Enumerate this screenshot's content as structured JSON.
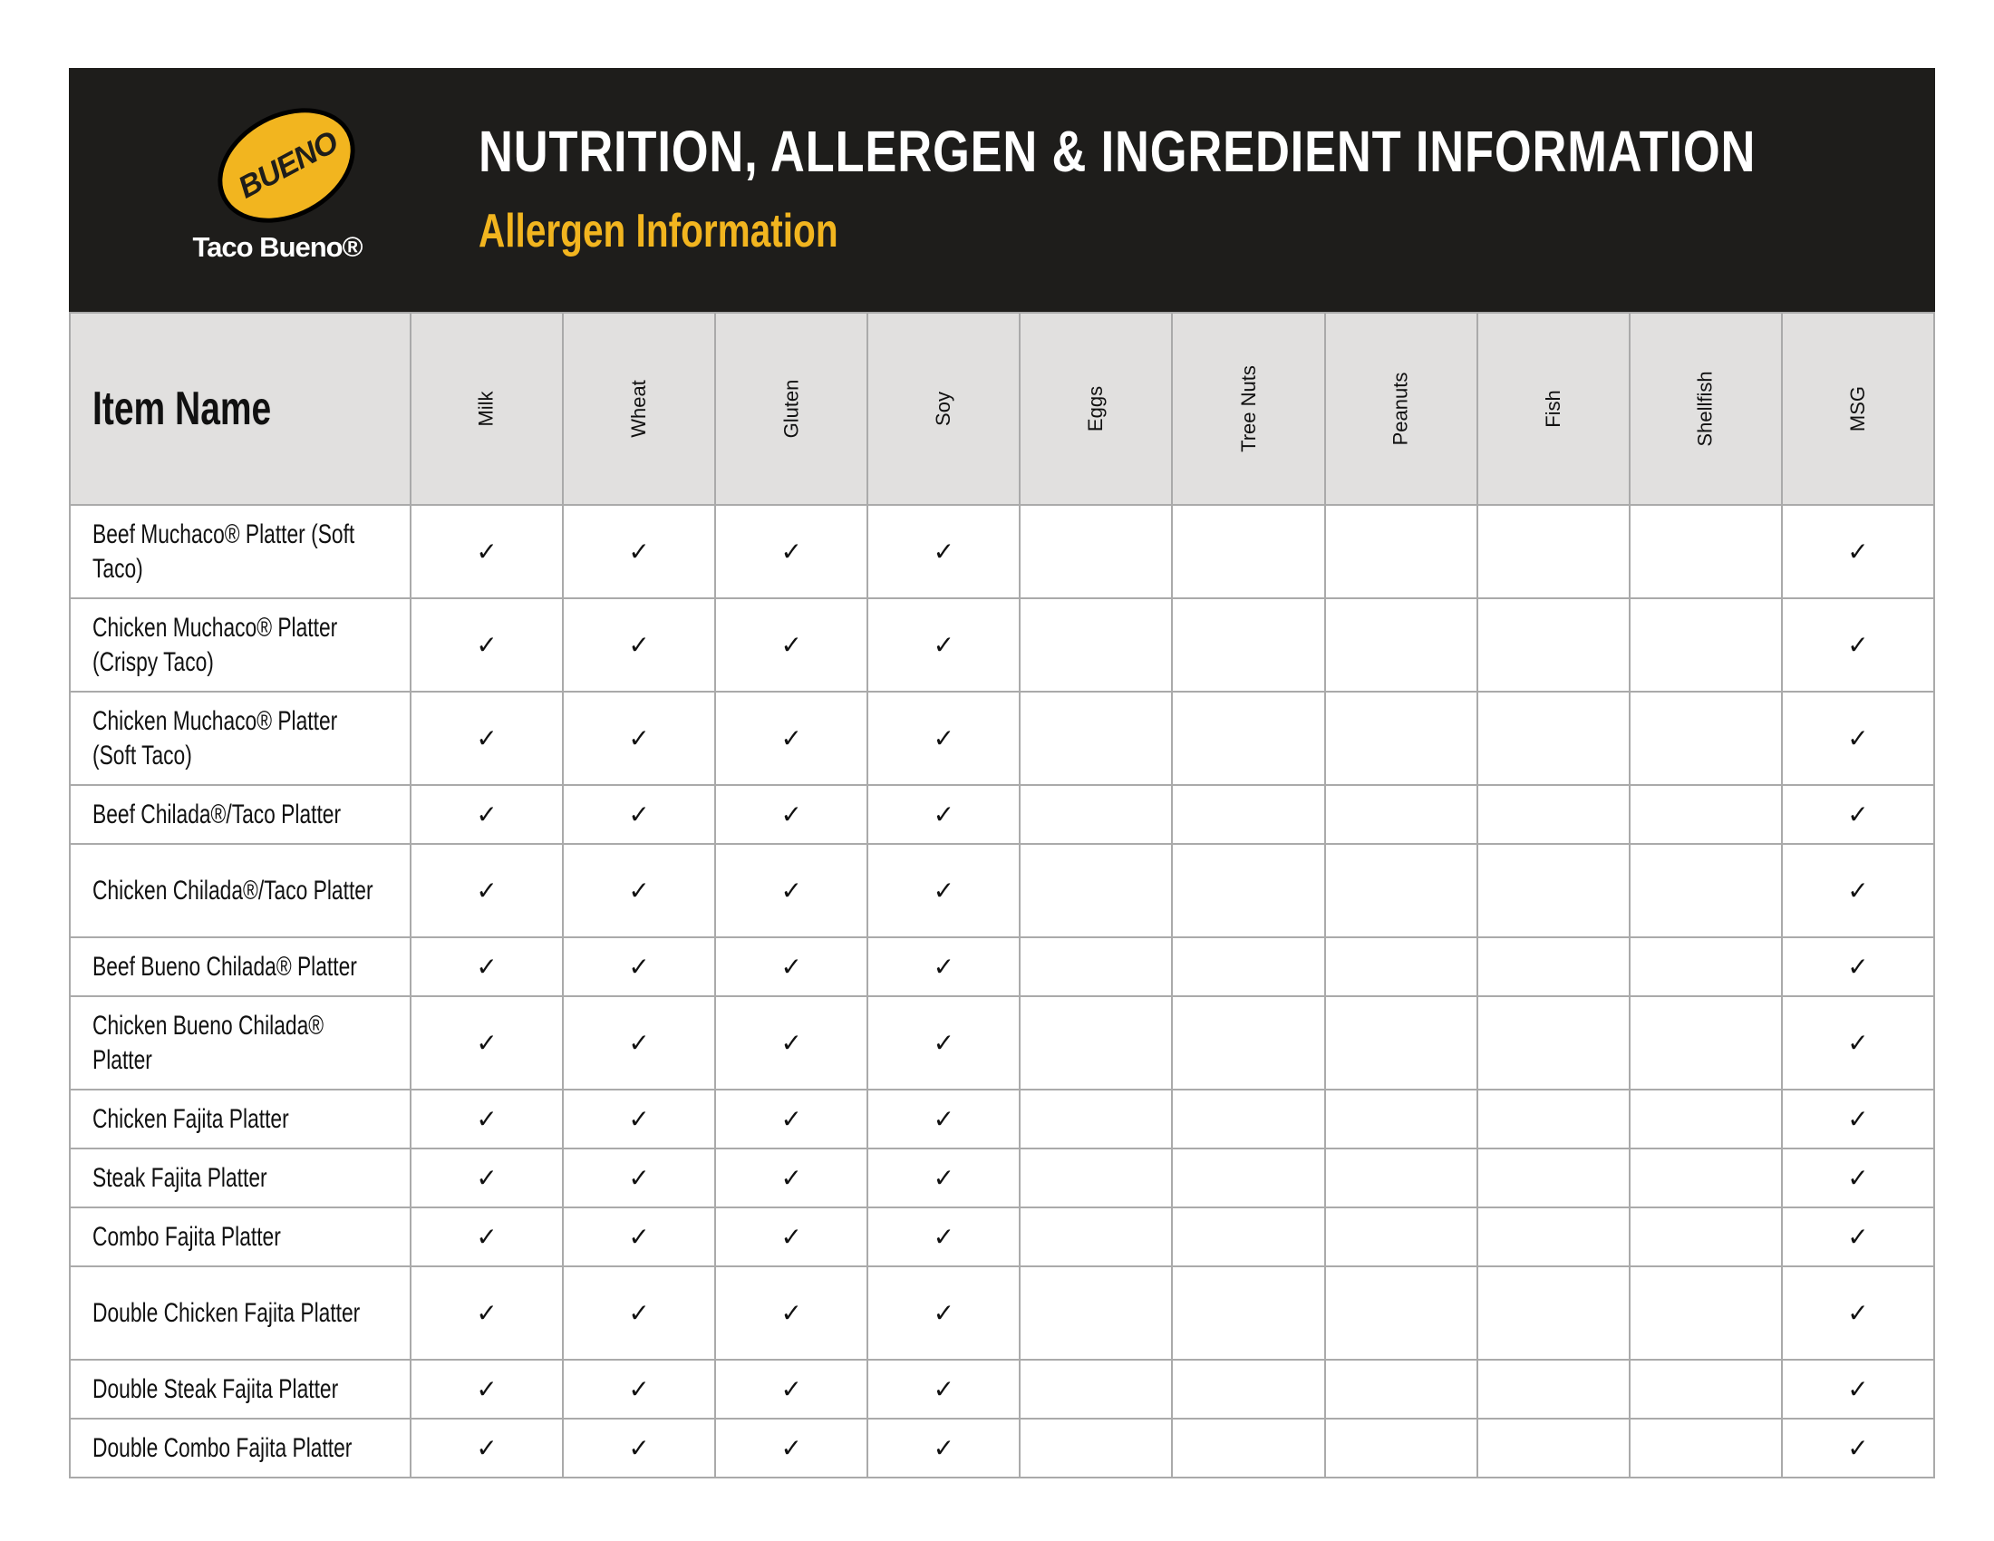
{
  "header": {
    "logo_badge_text": "BUENO",
    "logo_name": "Taco Bueno®",
    "title": "NUTRITION, ALLERGEN & INGREDIENT INFORMATION",
    "subtitle": "Allergen Information",
    "colors": {
      "background": "#1e1d1b",
      "accent": "#f2b51f"
    }
  },
  "table": {
    "item_header": "Item Name",
    "columns": [
      "Milk",
      "Wheat",
      "Gluten",
      "Soy",
      "Eggs",
      "Tree Nuts",
      "Peanuts",
      "Fish",
      "Shellfish",
      "MSG"
    ],
    "check_symbol": "✓",
    "rows": [
      {
        "name": "Beef Muchaco® Platter (Soft Taco)",
        "lines": 2,
        "contains": [
          "Milk",
          "Wheat",
          "Gluten",
          "Soy",
          "MSG"
        ]
      },
      {
        "name": "Chicken Muchaco® Platter (Crispy Taco)",
        "lines": 2,
        "contains": [
          "Milk",
          "Wheat",
          "Gluten",
          "Soy",
          "MSG"
        ]
      },
      {
        "name": "Chicken Muchaco® Platter (Soft Taco)",
        "lines": 2,
        "contains": [
          "Milk",
          "Wheat",
          "Gluten",
          "Soy",
          "MSG"
        ]
      },
      {
        "name": "Beef Chilada®/Taco Platter",
        "lines": 1,
        "contains": [
          "Milk",
          "Wheat",
          "Gluten",
          "Soy",
          "MSG"
        ]
      },
      {
        "name": "Chicken Chilada®/Taco Platter",
        "lines": 2,
        "contains": [
          "Milk",
          "Wheat",
          "Gluten",
          "Soy",
          "MSG"
        ]
      },
      {
        "name": "Beef Bueno Chilada® Platter",
        "lines": 1,
        "contains": [
          "Milk",
          "Wheat",
          "Gluten",
          "Soy",
          "MSG"
        ]
      },
      {
        "name": "Chicken Bueno Chilada® Platter",
        "lines": 2,
        "contains": [
          "Milk",
          "Wheat",
          "Gluten",
          "Soy",
          "MSG"
        ]
      },
      {
        "name": "Chicken Fajita Platter",
        "lines": 1,
        "contains": [
          "Milk",
          "Wheat",
          "Gluten",
          "Soy",
          "MSG"
        ]
      },
      {
        "name": "Steak Fajita Platter",
        "lines": 1,
        "contains": [
          "Milk",
          "Wheat",
          "Gluten",
          "Soy",
          "MSG"
        ]
      },
      {
        "name": "Combo Fajita Platter",
        "lines": 1,
        "contains": [
          "Milk",
          "Wheat",
          "Gluten",
          "Soy",
          "MSG"
        ]
      },
      {
        "name": "Double Chicken Fajita Platter",
        "lines": 2,
        "contains": [
          "Milk",
          "Wheat",
          "Gluten",
          "Soy",
          "MSG"
        ]
      },
      {
        "name": "Double Steak Fajita Platter",
        "lines": 1,
        "contains": [
          "Milk",
          "Wheat",
          "Gluten",
          "Soy",
          "MSG"
        ]
      },
      {
        "name": "Double Combo Fajita Platter",
        "lines": 1,
        "contains": [
          "Milk",
          "Wheat",
          "Gluten",
          "Soy",
          "MSG"
        ]
      }
    ]
  }
}
